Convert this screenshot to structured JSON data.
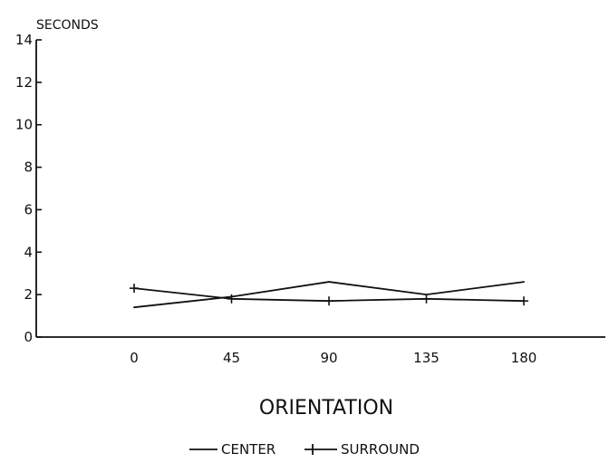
{
  "chart_data": {
    "type": "line",
    "title": "",
    "xlabel": "ORIENTATION",
    "ylabel": "SECONDS",
    "x": [
      0,
      45,
      90,
      135,
      180
    ],
    "x_tick_labels": [
      "0",
      "45",
      "90",
      "135",
      "180"
    ],
    "ylim": [
      0,
      14
    ],
    "y_ticks": [
      0,
      2,
      4,
      6,
      8,
      10,
      12,
      14
    ],
    "grid": false,
    "legend_placement": "bottom-center",
    "series": [
      {
        "name": "CENTER",
        "marker": "none",
        "values": [
          1.4,
          1.9,
          2.6,
          2.0,
          2.6
        ],
        "color": "#111111"
      },
      {
        "name": "SURROUND",
        "marker": "plus",
        "values": [
          2.3,
          1.8,
          1.7,
          1.8,
          1.7
        ],
        "color": "#111111"
      }
    ]
  }
}
